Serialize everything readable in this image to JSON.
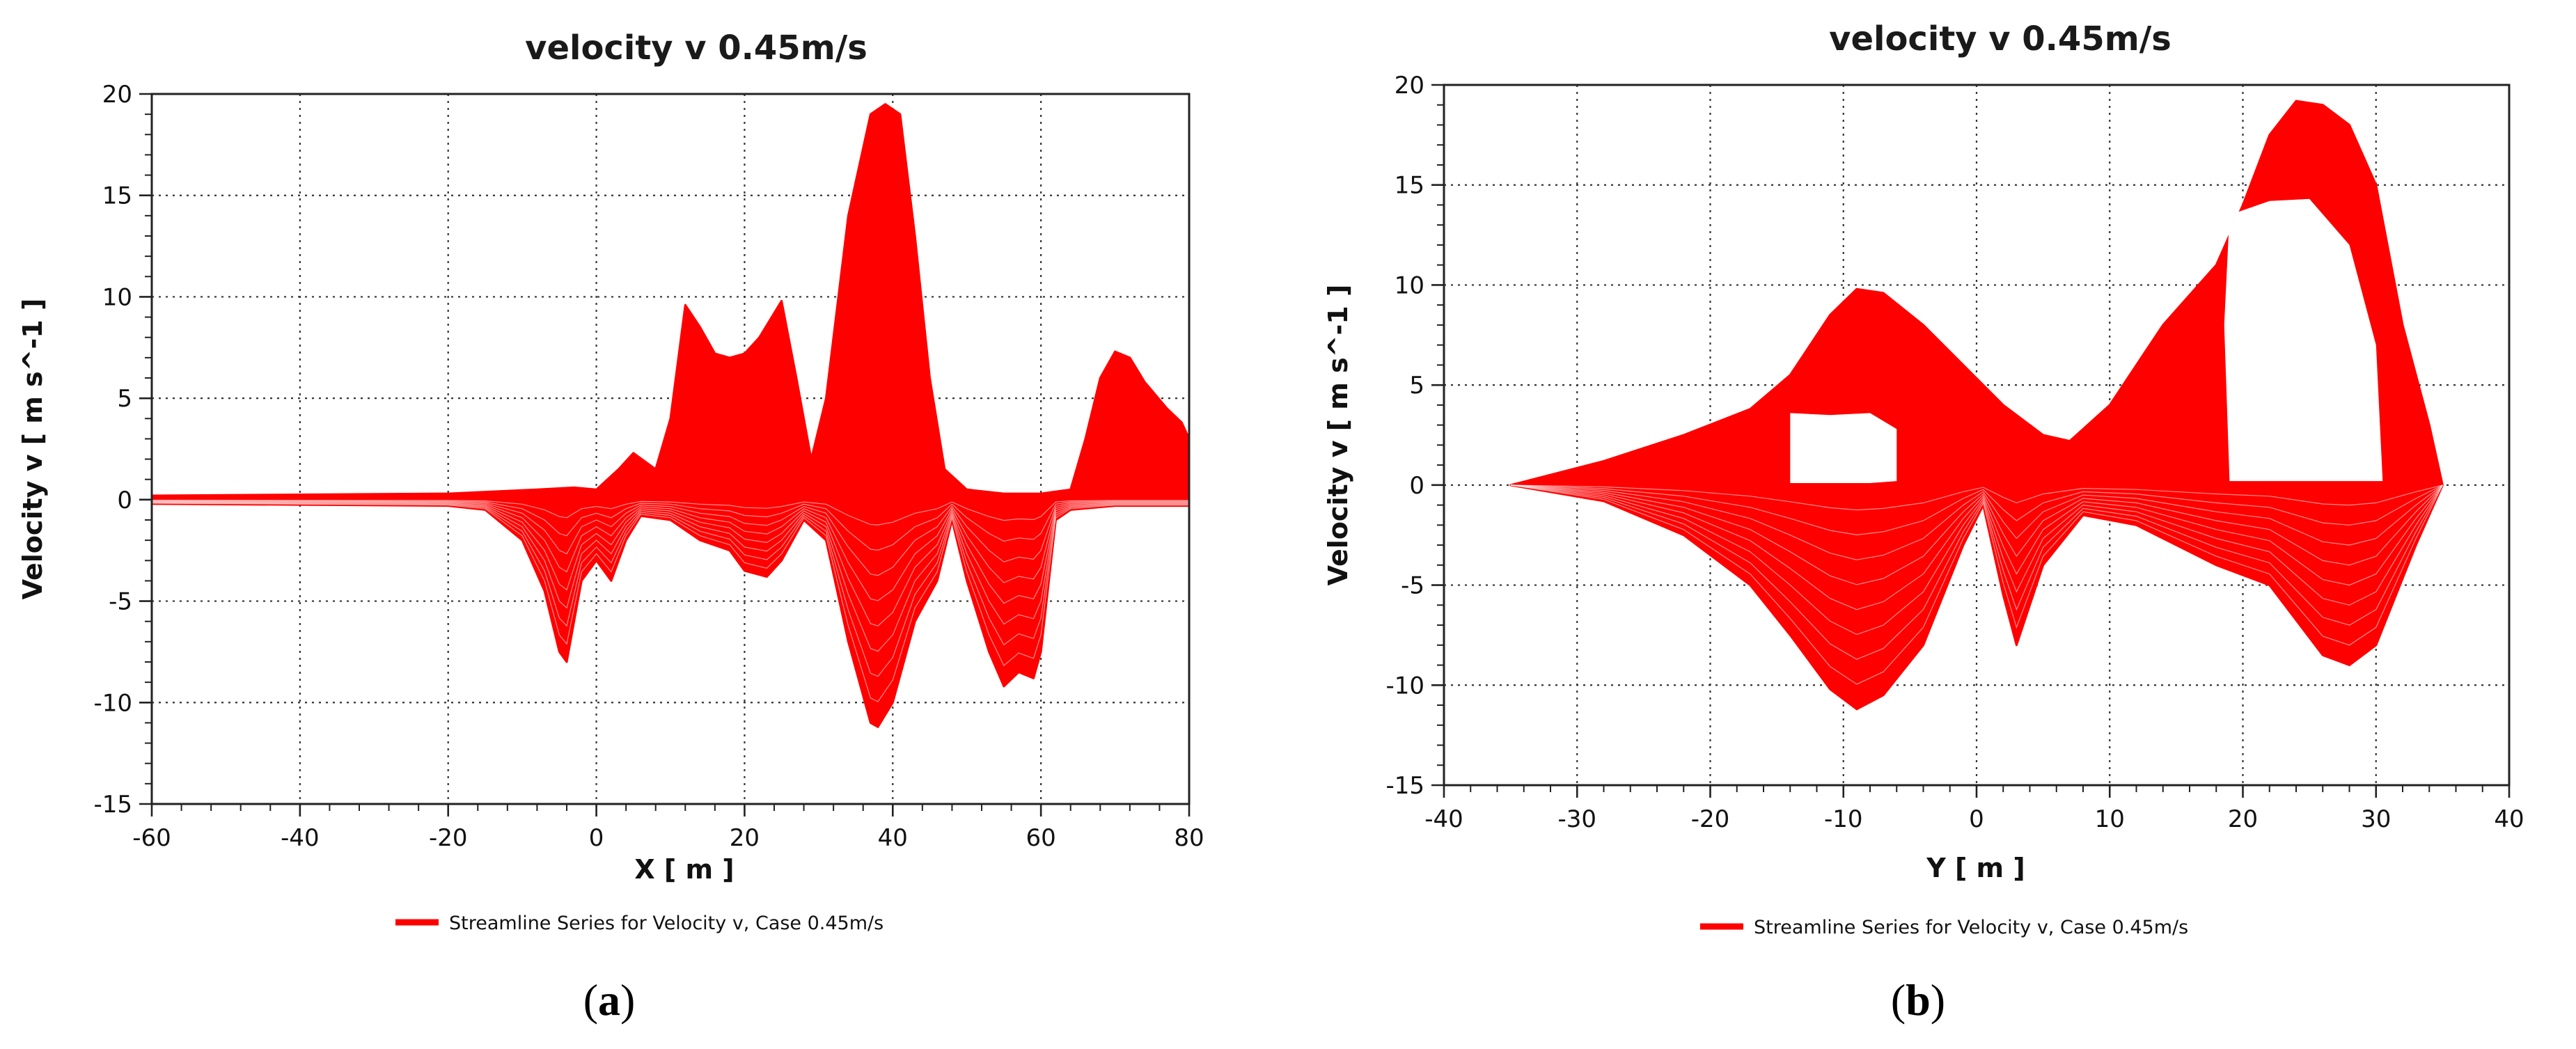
{
  "figure_captions": [
    "(a)",
    "(b)"
  ],
  "chart_data": [
    {
      "id": "a",
      "type": "line",
      "title": "velocity v 0.45m/s",
      "xlabel": "X [ m ]",
      "ylabel": "Velocity v [ m s^-1 ]",
      "xlim": [
        -60,
        80
      ],
      "ylim": [
        -15,
        20
      ],
      "xticks": [
        -60,
        -40,
        -20,
        0,
        20,
        40,
        60,
        80
      ],
      "yticks": [
        -15,
        -10,
        -5,
        0,
        5,
        10,
        15,
        20
      ],
      "grid": true,
      "legend_position": "bottom",
      "series_color": "#ff0000",
      "series": [
        {
          "name": "Streamline Series for Velocity v, Case 0.45m/s",
          "upper": [
            [
              -60,
              0.2
            ],
            [
              -20,
              0.3
            ],
            [
              -8,
              0.5
            ],
            [
              -3,
              0.6
            ],
            [
              0,
              0.5
            ],
            [
              3,
              1.5
            ],
            [
              5,
              2.3
            ],
            [
              8,
              1.5
            ],
            [
              10,
              4
            ],
            [
              12,
              9.6
            ],
            [
              14,
              8.5
            ],
            [
              16,
              7.2
            ],
            [
              18,
              7
            ],
            [
              20,
              7.2
            ],
            [
              22,
              8
            ],
            [
              25,
              9.8
            ],
            [
              27,
              6
            ],
            [
              29,
              2
            ],
            [
              31,
              5
            ],
            [
              34,
              14
            ],
            [
              37,
              19
            ],
            [
              39,
              19.5
            ],
            [
              41,
              19
            ],
            [
              43,
              13
            ],
            [
              45,
              6
            ],
            [
              47,
              1.5
            ],
            [
              50,
              0.5
            ],
            [
              55,
              0.3
            ],
            [
              60,
              0.3
            ],
            [
              64,
              0.5
            ],
            [
              66,
              3
            ],
            [
              68,
              6
            ],
            [
              70,
              7.3
            ],
            [
              72,
              7
            ],
            [
              74,
              5.8
            ],
            [
              77,
              4.5
            ],
            [
              79,
              3.8
            ],
            [
              80,
              3
            ]
          ],
          "lower": [
            [
              -60,
              -0.2
            ],
            [
              -20,
              -0.3
            ],
            [
              -15,
              -0.5
            ],
            [
              -10,
              -2
            ],
            [
              -7,
              -4.5
            ],
            [
              -5,
              -7.5
            ],
            [
              -4,
              -8
            ],
            [
              -3,
              -6
            ],
            [
              -2,
              -4
            ],
            [
              0,
              -3
            ],
            [
              2,
              -4
            ],
            [
              4,
              -2
            ],
            [
              6,
              -0.8
            ],
            [
              10,
              -1
            ],
            [
              14,
              -2
            ],
            [
              18,
              -2.5
            ],
            [
              20,
              -3.5
            ],
            [
              23,
              -3.8
            ],
            [
              25,
              -3
            ],
            [
              28,
              -1
            ],
            [
              31,
              -2
            ],
            [
              34,
              -7
            ],
            [
              37,
              -11
            ],
            [
              38,
              -11.2
            ],
            [
              40,
              -10
            ],
            [
              43,
              -6
            ],
            [
              46,
              -4
            ],
            [
              48,
              -1
            ],
            [
              50,
              -4
            ],
            [
              53,
              -7.5
            ],
            [
              55,
              -9.2
            ],
            [
              57,
              -8.5
            ],
            [
              59,
              -8.8
            ],
            [
              60,
              -7.5
            ],
            [
              62,
              -1
            ],
            [
              64,
              -0.5
            ],
            [
              70,
              -0.3
            ],
            [
              75,
              -0.3
            ],
            [
              80,
              -0.3
            ]
          ]
        }
      ]
    },
    {
      "id": "b",
      "type": "line",
      "title": "velocity v 0.45m/s",
      "xlabel": "Y [ m ]",
      "ylabel": "Velocity v [ m s^-1 ]",
      "xlim": [
        -40,
        40
      ],
      "ylim": [
        -15,
        20
      ],
      "xticks": [
        -40,
        -30,
        -20,
        -10,
        0,
        10,
        20,
        30,
        40
      ],
      "yticks": [
        -15,
        -10,
        -5,
        0,
        5,
        10,
        15,
        20
      ],
      "grid": true,
      "legend_position": "bottom",
      "series_color": "#ff0000",
      "series": [
        {
          "name": "Streamline Series for Velocity v, Case 0.45m/s",
          "upper": [
            [
              -35,
              0
            ],
            [
              -28,
              1.2
            ],
            [
              -22,
              2.5
            ],
            [
              -17,
              3.8
            ],
            [
              -14,
              5.5
            ],
            [
              -11,
              8.5
            ],
            [
              -9,
              9.8
            ],
            [
              -7,
              9.6
            ],
            [
              -4,
              8
            ],
            [
              -1,
              6
            ],
            [
              2,
              4
            ],
            [
              5,
              2.5
            ],
            [
              7,
              2.2
            ],
            [
              10,
              4
            ],
            [
              14,
              8
            ],
            [
              18,
              11
            ],
            [
              20,
              14
            ],
            [
              22,
              17.5
            ],
            [
              24,
              19.2
            ],
            [
              26,
              19
            ],
            [
              28,
              18
            ],
            [
              30,
              15
            ],
            [
              32,
              8
            ],
            [
              34,
              3
            ],
            [
              35,
              0
            ]
          ],
          "lower": [
            [
              -35,
              0
            ],
            [
              -28,
              -0.8
            ],
            [
              -22,
              -2.5
            ],
            [
              -17,
              -5
            ],
            [
              -14,
              -7.5
            ],
            [
              -11,
              -10.2
            ],
            [
              -9,
              -11.2
            ],
            [
              -7,
              -10.5
            ],
            [
              -4,
              -8
            ],
            [
              -1,
              -3
            ],
            [
              0.5,
              -1
            ],
            [
              2,
              -5.5
            ],
            [
              3,
              -8
            ],
            [
              5,
              -4
            ],
            [
              8,
              -1.5
            ],
            [
              12,
              -2
            ],
            [
              18,
              -4
            ],
            [
              22,
              -5
            ],
            [
              26,
              -8.5
            ],
            [
              28,
              -9
            ],
            [
              30,
              -8
            ],
            [
              33,
              -3
            ],
            [
              35,
              0
            ]
          ],
          "holes": [
            [
              [
                -14,
                3.6
              ],
              [
                -11,
                3.5
              ],
              [
                -8,
                3.6
              ],
              [
                -6,
                2.8
              ],
              [
                -6,
                0.2
              ],
              [
                -8,
                0.1
              ],
              [
                -14,
                0.1
              ]
            ],
            [
              [
                19,
                13.5
              ],
              [
                22,
                14.2
              ],
              [
                25,
                14.3
              ],
              [
                28,
                12
              ],
              [
                30,
                7
              ],
              [
                30.5,
                0.2
              ],
              [
                19,
                0.2
              ],
              [
                18.6,
                8
              ]
            ]
          ]
        }
      ]
    }
  ]
}
